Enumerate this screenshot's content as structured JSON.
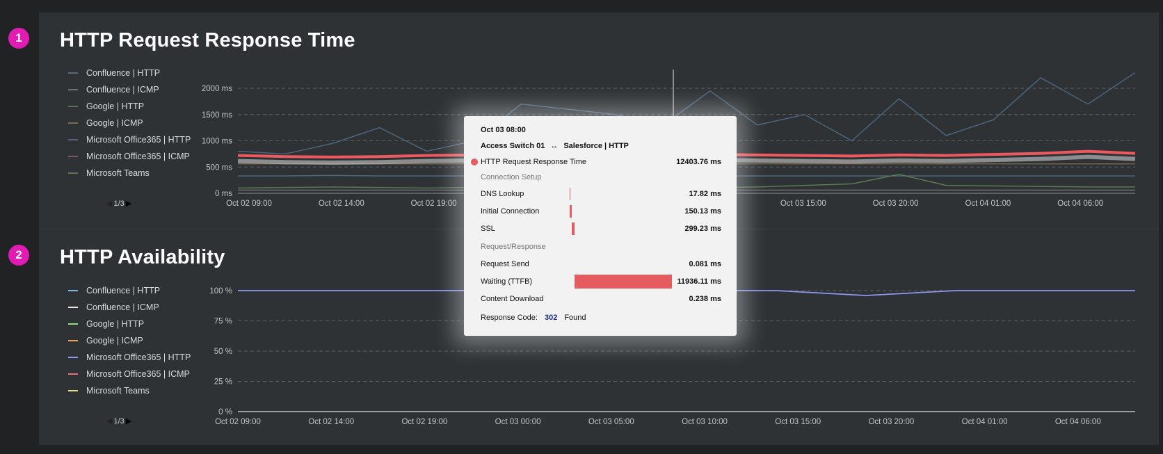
{
  "panels": [
    {
      "number": "1",
      "title": "HTTP Request Response Time",
      "pager": "1/3"
    },
    {
      "number": "2",
      "title": "HTTP Availability",
      "pager": "1/3"
    }
  ],
  "legend": [
    {
      "label": "Confluence | HTTP",
      "color_dim": "#5b6a7a",
      "color": "#7fb8e8"
    },
    {
      "label": "Confluence | ICMP",
      "color_dim": "#6b706f",
      "color": "#e8e8e0"
    },
    {
      "label": "Google | HTTP",
      "color_dim": "#5d6f57",
      "color": "#8ee07a"
    },
    {
      "label": "Google | ICMP",
      "color_dim": "#7a6a55",
      "color": "#e8a25a"
    },
    {
      "label": "Microsoft Office365 | HTTP",
      "color_dim": "#5a6078",
      "color": "#8f97f0"
    },
    {
      "label": "Microsoft Office365 | ICMP",
      "color_dim": "#7a5a5c",
      "color": "#ef6a7a"
    },
    {
      "label": "Microsoft Teams",
      "color_dim": "#6a6f5a",
      "color": "#e8e07a"
    }
  ],
  "chart_data": [
    {
      "type": "line",
      "title": "HTTP Request Response Time",
      "x": [
        "Oct 02 09:00",
        "Oct 02 11:30",
        "Oct 02 14:00",
        "Oct 02 16:30",
        "Oct 02 19:00",
        "Oct 02 21:30",
        "Oct 03 00:00",
        "Oct 03 02:30",
        "Oct 03 05:00",
        "Oct 03 07:30",
        "Oct 03 10:00",
        "Oct 03 12:30",
        "Oct 03 15:00",
        "Oct 03 17:30",
        "Oct 03 20:00",
        "Oct 03 22:30",
        "Oct 04 01:00",
        "Oct 04 03:30",
        "Oct 04 06:00",
        "Oct 04 08:00"
      ],
      "xticks": [
        "Oct 02 09:00",
        "Oct 02 14:00",
        "Oct 02 19:00",
        "Oct 03 00:00",
        "Oct 03 05:00",
        "Oct 03 10:00",
        "Oct 03 15:00",
        "Oct 03 20:00",
        "Oct 04 01:00",
        "Oct 04 06:00"
      ],
      "yticks": [
        "0 ms",
        "500 ms",
        "1000 ms",
        "1500 ms",
        "2000 ms"
      ],
      "ylim": [
        0,
        2000
      ],
      "highlight_series": "Salesforce | HTTP",
      "series": [
        {
          "values": [
            800,
            750,
            950,
            1250,
            800,
            1000,
            1700,
            1600,
            1500,
            1300,
            1950,
            1300,
            1500,
            1000,
            1800,
            1100,
            1400,
            2200,
            1700,
            2300
          ]
        },
        {
          "values": [
            720,
            700,
            690,
            700,
            720,
            730,
            710,
            700,
            720,
            730,
            740,
            730,
            720,
            710,
            730,
            720,
            740,
            760,
            800,
            760
          ]
        },
        {
          "values": [
            330,
            330,
            340,
            330,
            330,
            330,
            330,
            330,
            330,
            330,
            330,
            330,
            330,
            330,
            330,
            330,
            330,
            330,
            330,
            330
          ]
        },
        {
          "values": [
            100,
            110,
            120,
            110,
            100,
            110,
            120,
            130,
            110,
            100,
            110,
            120,
            150,
            180,
            360,
            150,
            140,
            130,
            120,
            120
          ]
        },
        {
          "values": [
            560,
            560,
            560,
            560,
            560,
            560,
            560,
            560,
            560,
            560,
            560,
            560,
            560,
            560,
            560,
            560,
            560,
            560,
            560,
            560
          ]
        },
        {
          "values": [
            60,
            60,
            60,
            60,
            60,
            60,
            60,
            60,
            60,
            60,
            60,
            60,
            60,
            60,
            60,
            60,
            60,
            60,
            60,
            60
          ]
        }
      ]
    },
    {
      "type": "line",
      "title": "HTTP Availability",
      "x": [
        "Oct 02 09:00",
        "Oct 02 14:00",
        "Oct 02 19:00",
        "Oct 03 00:00",
        "Oct 03 05:00",
        "Oct 03 10:00",
        "Oct 03 15:00",
        "Oct 03 20:00",
        "Oct 04 01:00",
        "Oct 04 06:00",
        "Oct 04 08:00"
      ],
      "xticks": [
        "Oct 02 09:00",
        "Oct 02 14:00",
        "Oct 02 19:00",
        "Oct 03 00:00",
        "Oct 03 05:00",
        "Oct 03 10:00",
        "Oct 03 15:00",
        "Oct 03 20:00",
        "Oct 04 01:00",
        "Oct 04 06:00"
      ],
      "yticks": [
        "0 %",
        "25 %",
        "50 %",
        "75 %",
        "100 %"
      ],
      "ylim": [
        0,
        100
      ],
      "series": [
        {
          "values": [
            100,
            100,
            100,
            100,
            100,
            100,
            100,
            96,
            100,
            100,
            100
          ]
        },
        {
          "values": [
            0,
            0,
            0,
            0,
            0,
            0,
            0,
            0,
            0,
            0,
            0
          ]
        }
      ]
    }
  ],
  "tooltip": {
    "time": "Oct 03 08:00",
    "source": "Access Switch 01",
    "arrow": "↔",
    "target": "Salesforce | HTTP",
    "metric": "HTTP Request Response Time",
    "metric_value": "12403.76 ms",
    "section1": "Connection Setup",
    "section2": "Request/Response",
    "rows": [
      {
        "label": "DNS Lookup",
        "value": "17.82 ms",
        "ms": 17.82
      },
      {
        "label": "Initial Connection",
        "value": "150.13 ms",
        "ms": 150.13
      },
      {
        "label": "SSL",
        "value": "299.23 ms",
        "ms": 299.23
      },
      {
        "label": "Request Send",
        "value": "0.081 ms",
        "ms": 0.081
      },
      {
        "label": "Waiting (TTFB)",
        "value": "11936.11 ms",
        "ms": 11936.11
      },
      {
        "label": "Content Download",
        "value": "0.238 ms",
        "ms": 0.238
      }
    ],
    "response_label": "Response Code:",
    "response_code": "302",
    "response_text": "Found"
  }
}
